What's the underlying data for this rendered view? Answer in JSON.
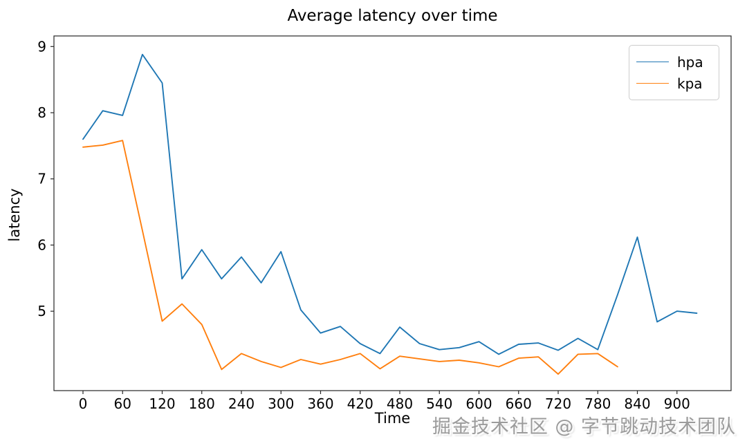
{
  "page": {
    "watermark": "掘金技术社区 @ 字节跳动技术团队"
  },
  "chart_data": {
    "type": "line",
    "title": "Average latency over time",
    "xlabel": "Time",
    "ylabel": "latency",
    "grid": false,
    "legend_position": "upper right",
    "xlim": [
      -44,
      982
    ],
    "ylim": [
      3.8,
      9.16
    ],
    "xticks": [
      0,
      60,
      120,
      180,
      240,
      300,
      360,
      420,
      480,
      540,
      600,
      660,
      720,
      780,
      840,
      900
    ],
    "yticks": [
      5,
      6,
      7,
      8,
      9
    ],
    "series": [
      {
        "name": "hpa",
        "color": "#1f77b4",
        "x": [
          0,
          30,
          60,
          90,
          120,
          150,
          180,
          210,
          240,
          270,
          300,
          330,
          360,
          390,
          420,
          450,
          480,
          510,
          540,
          570,
          600,
          630,
          660,
          690,
          720,
          750,
          780,
          810,
          840,
          870,
          900,
          930
        ],
        "values": [
          7.6,
          8.03,
          7.96,
          8.88,
          8.45,
          5.49,
          5.93,
          5.49,
          5.82,
          5.43,
          5.9,
          5.02,
          4.67,
          4.77,
          4.51,
          4.36,
          4.76,
          4.51,
          4.42,
          4.45,
          4.54,
          4.35,
          4.5,
          4.52,
          4.41,
          4.59,
          4.42,
          5.25,
          6.12,
          4.84,
          5.0,
          4.97
        ]
      },
      {
        "name": "kpa",
        "color": "#ff7f0e",
        "x": [
          0,
          30,
          60,
          90,
          120,
          150,
          180,
          210,
          240,
          270,
          300,
          330,
          360,
          390,
          420,
          450,
          480,
          510,
          540,
          570,
          600,
          630,
          660,
          690,
          720,
          750,
          780,
          810
        ],
        "values": [
          7.48,
          7.51,
          7.58,
          6.22,
          4.85,
          5.11,
          4.8,
          4.12,
          4.36,
          4.24,
          4.15,
          4.27,
          4.2,
          4.27,
          4.36,
          4.13,
          4.32,
          4.28,
          4.24,
          4.26,
          4.22,
          4.16,
          4.29,
          4.31,
          4.05,
          4.35,
          4.36,
          4.16
        ]
      }
    ]
  }
}
